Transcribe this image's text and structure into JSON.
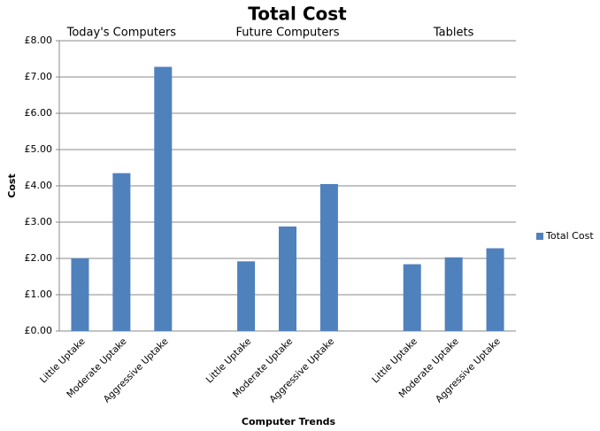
{
  "chart_data": {
    "type": "bar",
    "title": "Total Cost",
    "x_label": "Computer Trends",
    "y_label": "Cost",
    "categories": [
      "Little Uptake",
      "Moderate Uptake",
      "Aggressive Uptake",
      null,
      "Little Uptake",
      "Moderate Uptake",
      "Aggressive Uptake",
      null,
      "Little Uptake",
      "Moderate Uptake",
      "Aggressive Uptake"
    ],
    "groups": [
      {
        "label": "Today's Computers",
        "center": 1
      },
      {
        "label": "Future Computers",
        "center": 5
      },
      {
        "label": "Tablets",
        "center": 9
      }
    ],
    "series": [
      {
        "name": "Total Cost",
        "color": "#4f81bd",
        "values": [
          2.0,
          4.35,
          7.28,
          null,
          1.92,
          2.88,
          4.05,
          null,
          1.84,
          2.03,
          2.28
        ]
      }
    ],
    "ylim": [
      0,
      8
    ],
    "yticks": [
      {
        "value": 0,
        "label": "£0.00"
      },
      {
        "value": 1,
        "label": "£1.00"
      },
      {
        "value": 2,
        "label": "£2.00"
      },
      {
        "value": 3,
        "label": "£3.00"
      },
      {
        "value": 4,
        "label": "£4.00"
      },
      {
        "value": 5,
        "label": "£5.00"
      },
      {
        "value": 6,
        "label": "£6.00"
      },
      {
        "value": 7,
        "label": "£7.00"
      },
      {
        "value": 8,
        "label": "£8.00"
      }
    ],
    "grid": true,
    "legend": "right"
  }
}
